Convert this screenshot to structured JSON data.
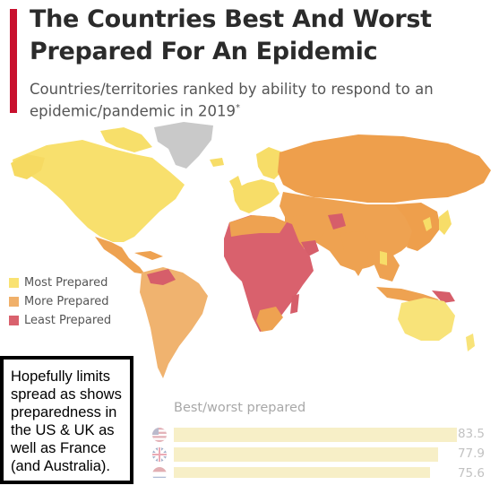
{
  "title": "The Countries Best And Worst Prepared For An Epidemic",
  "subtitle": "Countries/territories ranked by ability to respond to an epidemic/pandemic in 2019",
  "subtitle_mark": "*",
  "legend": [
    {
      "label": "Most Prepared",
      "color": "#f9e272"
    },
    {
      "label": "More Prepared",
      "color": "#f0b06a"
    },
    {
      "label": "Least Prepared",
      "color": "#d9616d"
    }
  ],
  "colors": {
    "most": "#f9e272",
    "more": "#eea251",
    "least": "#d65e6a",
    "no_data": "#c9c9c9",
    "accent": "#c8102e"
  },
  "best_worst": {
    "title": "Best/worst prepared",
    "rows": [
      {
        "flag": "us-flag-icon",
        "value": "83.5",
        "score": 83.5
      },
      {
        "flag": "uk-flag-icon",
        "value": "77.9",
        "score": 77.9
      },
      {
        "flag": "nl-flag-icon",
        "value": "75.6",
        "score": 75.6
      }
    ]
  },
  "annotation": "Hopefully limits spread as shows preparedness in the US & UK as well as France (and Australia)."
}
